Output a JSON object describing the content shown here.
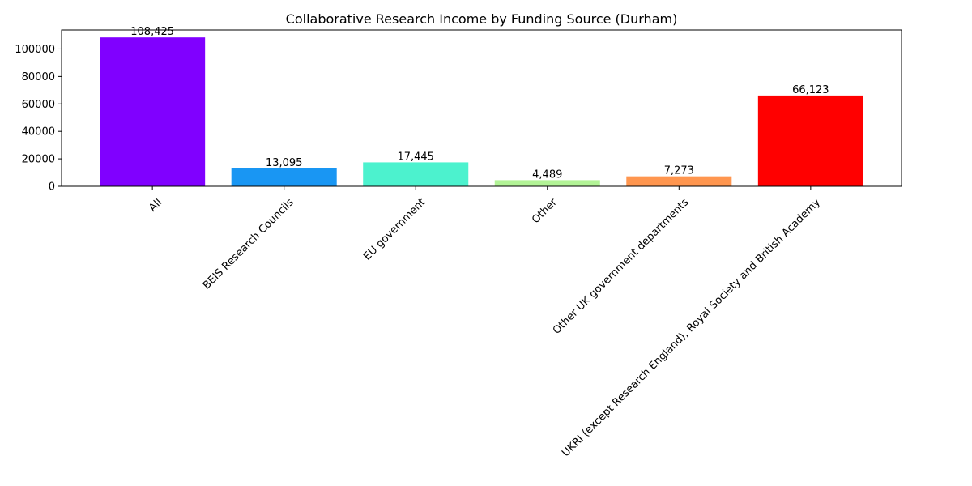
{
  "chart_data": {
    "type": "bar",
    "title": "Collaborative Research Income by Funding Source (Durham)",
    "xlabel": "",
    "ylabel": "",
    "categories": [
      "All",
      "BEIS Research Councils",
      "EU government",
      "Other",
      "Other UK government departments",
      "UKRI (except Research England), Royal Society and British Academy"
    ],
    "values": [
      108425,
      13095,
      17445,
      4489,
      7273,
      66123
    ],
    "data_labels": [
      "108,425",
      "13,095",
      "17,445",
      "4,489",
      "7,273",
      "66,123"
    ],
    "colors": [
      "#8000ff",
      "#1996f3",
      "#4cf2ce",
      "#b2f396",
      "#ff964f",
      "#ff0000"
    ],
    "ylim": [
      0,
      113846
    ],
    "yticks": [
      0,
      20000,
      40000,
      60000,
      80000,
      100000
    ],
    "ytick_labels": [
      "0",
      "20000",
      "40000",
      "60000",
      "80000",
      "100000"
    ],
    "grid": false,
    "legend": "none"
  }
}
